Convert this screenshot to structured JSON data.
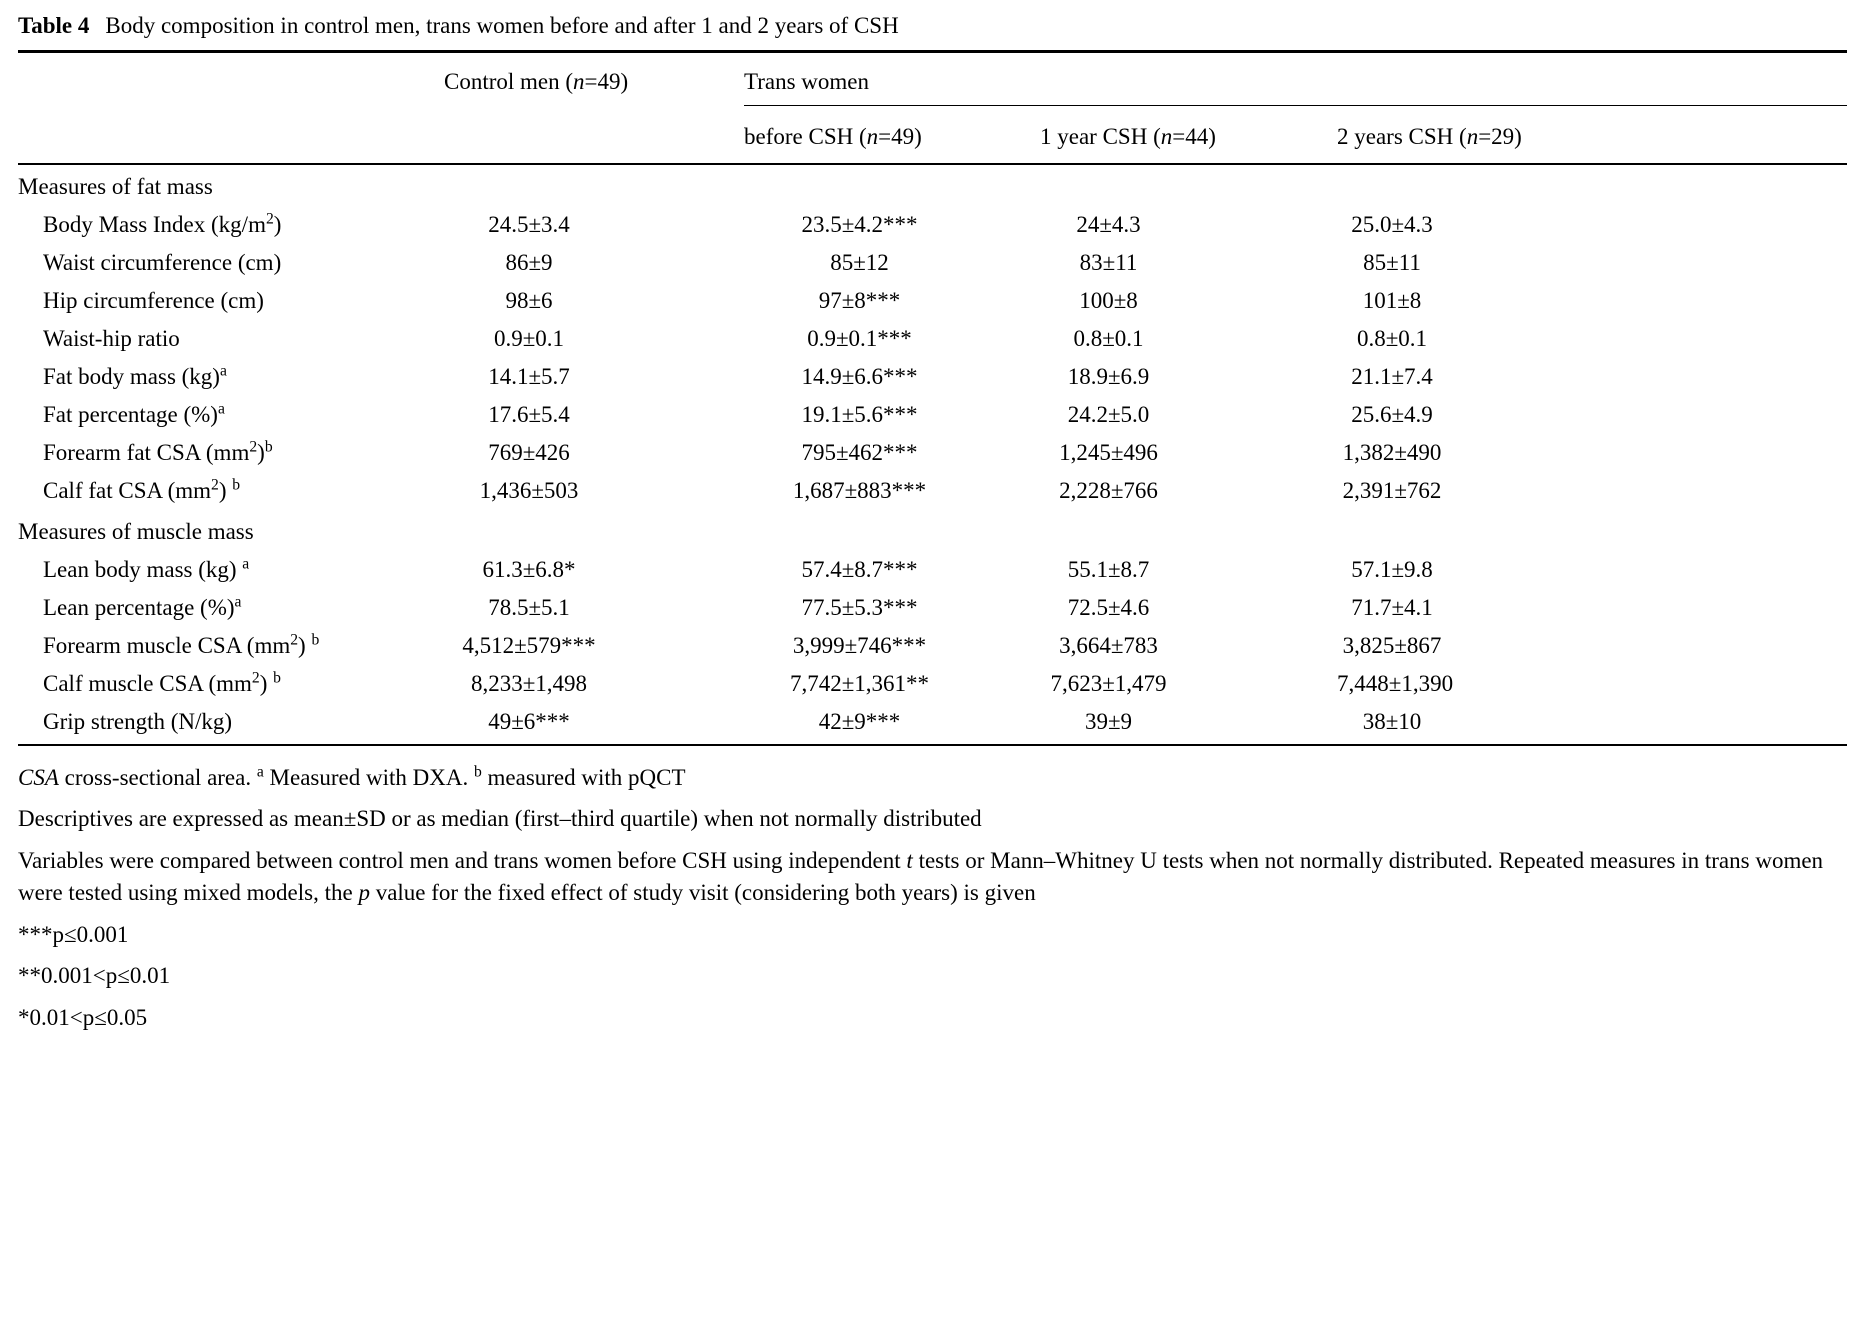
{
  "caption": {
    "label": "Table 4",
    "text": "Body composition in control men, trans women before and after 1 and 2 years of CSH"
  },
  "table": {
    "columns": {
      "control": "Control men ({i}n{/i}=49)",
      "group": "Trans women",
      "subcolumns": [
        "before CSH ({i}n{/i}=49)",
        "1 year CSH ({i}n{/i}=44)",
        "2 years CSH ({i}n{/i}=29)"
      ]
    },
    "sections": [
      {
        "header": "Measures of fat mass",
        "rows": [
          {
            "label": "Body Mass Index (kg/m{sup}2{/sup})",
            "values": [
              "24.5±3.4",
              "23.5±4.2***",
              "24±4.3",
              "25.0±4.3"
            ]
          },
          {
            "label": "Waist circumference (cm)",
            "values": [
              "86±9",
              "85±12",
              "83±11",
              "85±11"
            ]
          },
          {
            "label": "Hip circumference (cm)",
            "values": [
              "98±6",
              "97±8***",
              "100±8",
              "101±8"
            ]
          },
          {
            "label": "Waist-hip ratio",
            "values": [
              "0.9±0.1",
              "0.9±0.1***",
              "0.8±0.1",
              "0.8±0.1"
            ]
          },
          {
            "label": "Fat body mass (kg){sup}a{/sup}",
            "values": [
              "14.1±5.7",
              "14.9±6.6***",
              "18.9±6.9",
              "21.1±7.4"
            ]
          },
          {
            "label": "Fat percentage (%){sup}a{/sup}",
            "values": [
              "17.6±5.4",
              "19.1±5.6***",
              "24.2±5.0",
              "25.6±4.9"
            ]
          },
          {
            "label": "Forearm fat CSA (mm{sup}2{/sup}){sup}b{/sup}",
            "values": [
              "769±426",
              "795±462***",
              "1,245±496",
              "1,382±490"
            ]
          },
          {
            "label": "Calf fat CSA (mm{sup}2{/sup}) {sup}b{/sup}",
            "values": [
              "1,436±503",
              "1,687±883***",
              "2,228±766",
              "2,391±762"
            ]
          }
        ]
      },
      {
        "header": "Measures of muscle mass",
        "rows": [
          {
            "label": "Lean body mass (kg) {sup}a{/sup}",
            "values": [
              "61.3±6.8*",
              "57.4±8.7***",
              "55.1±8.7",
              "57.1±9.8"
            ]
          },
          {
            "label": "Lean percentage (%){sup}a{/sup}",
            "values": [
              "78.5±5.1",
              "77.5±5.3***",
              "72.5±4.6",
              "71.7±4.1"
            ]
          },
          {
            "label": "Forearm muscle CSA (mm{sup}2{/sup}) {sup}b{/sup}",
            "values": [
              "4,512±579***",
              "3,999±746***",
              "3,664±783",
              "3,825±867"
            ]
          },
          {
            "label": "Calf muscle CSA (mm{sup}2{/sup}) {sup}b{/sup}",
            "values": [
              "8,233±1,498",
              "7,742±1,361**",
              "7,623±1,479",
              "7,448±1,390"
            ]
          },
          {
            "label": "Grip strength (N/kg)",
            "values": [
              "49±6***",
              "42±9***",
              "39±9",
              "38±10"
            ]
          }
        ]
      }
    ]
  },
  "footnotes": [
    "{i}CSA{/i} cross-sectional area. {sup}a{/sup} Measured with DXA. {sup}b{/sup} measured with pQCT",
    "Descriptives are expressed as mean±SD or as median (first–third quartile) when not normally distributed",
    "Variables were compared between control men and trans women before CSH using independent {i}t{/i} tests or Mann–Whitney U tests when not normally distributed. Repeated measures in trans women were tested using mixed models, the {i}p{/i} value for the fixed effect of study visit (considering both years) is given",
    "***p≤0.001",
    "**0.001<p≤0.01",
    "*0.01<p≤0.05"
  ]
}
